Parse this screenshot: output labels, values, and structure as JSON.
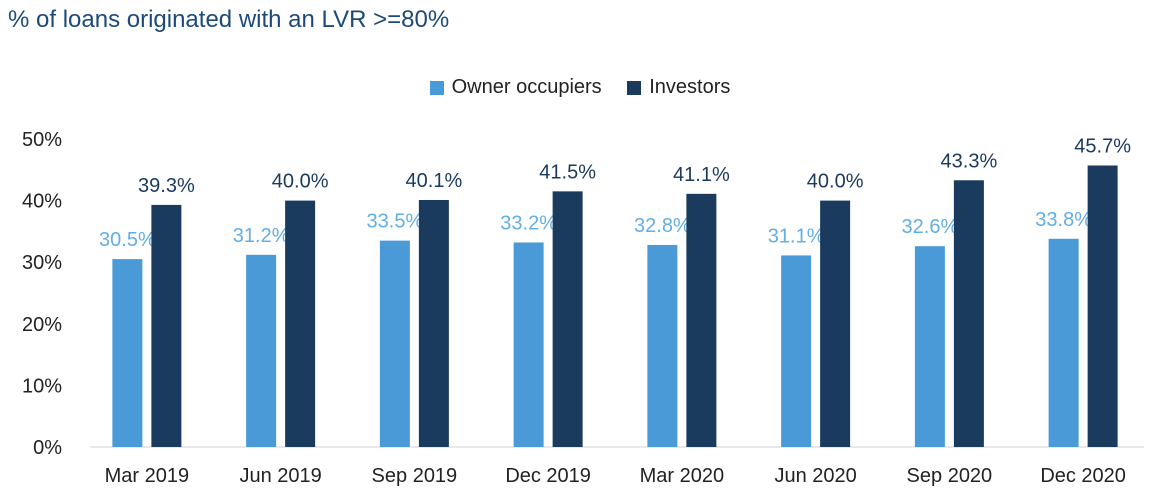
{
  "chart_data": {
    "type": "bar",
    "title": "% of loans originated with an LVR >=80%",
    "categories": [
      "Mar 2019",
      "Jun 2019",
      "Sep 2019",
      "Dec 2019",
      "Mar 2020",
      "Jun 2020",
      "Sep 2020",
      "Dec 2020"
    ],
    "series": [
      {
        "name": "Owner occupiers",
        "color": "#4b9ad8",
        "values": [
          30.5,
          31.2,
          33.5,
          33.2,
          32.8,
          31.1,
          32.6,
          33.8
        ],
        "labels": [
          "30.5%",
          "31.2%",
          "33.5%",
          "33.2%",
          "32.8%",
          "31.1%",
          "32.6%",
          "33.8%"
        ]
      },
      {
        "name": "Investors",
        "color": "#1a3a5e",
        "values": [
          39.3,
          40.0,
          40.1,
          41.5,
          41.1,
          40.0,
          43.3,
          45.7
        ],
        "labels": [
          "39.3%",
          "40.0%",
          "40.1%",
          "41.5%",
          "41.1%",
          "40.0%",
          "43.3%",
          "45.7%"
        ]
      }
    ],
    "ylim": [
      0,
      50
    ],
    "yticks": [
      "0%",
      "10%",
      "20%",
      "30%",
      "40%",
      "50%"
    ],
    "ytick_values": [
      0,
      10,
      20,
      30,
      40,
      50
    ],
    "grid": false,
    "legend_position": "top-center"
  }
}
